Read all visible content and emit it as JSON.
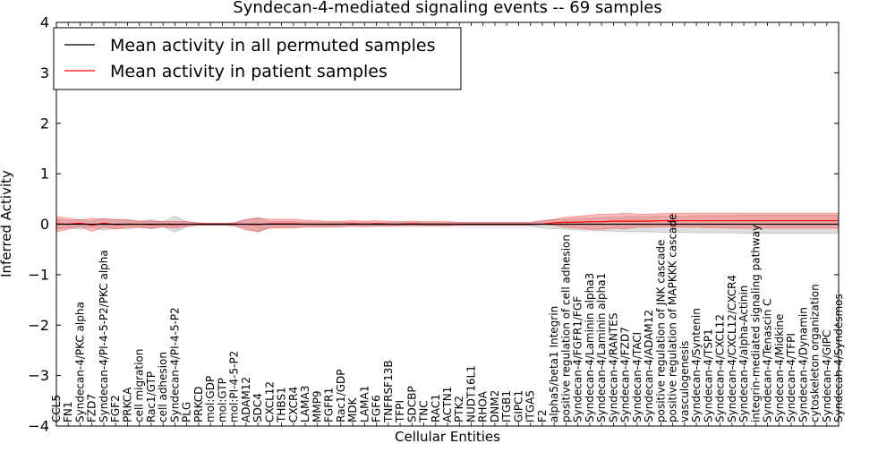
{
  "chart_data": {
    "type": "line",
    "title": "Syndecan-4-mediated signaling events -- 69 samples",
    "xlabel": "Cellular Entities",
    "ylabel": "Inferred Activity",
    "ylim": [
      -4,
      4
    ],
    "yticks": [
      -4,
      -3,
      -2,
      -1,
      0,
      1,
      2,
      3,
      4
    ],
    "ytick_labels": [
      "−4",
      "−3",
      "−2",
      "−1",
      "0",
      "1",
      "2",
      "3",
      "4"
    ],
    "legend_position": "top-left",
    "categories": [
      "CCL5",
      "FN1",
      "Syndecan-4/PKC alpha",
      "FZD7",
      "Syndecan-4/PI-4-5-P2/PKC alpha",
      "FGF2",
      "PRKCA",
      "cell migration",
      "Rac1/GTP",
      "cell adhesion",
      "Syndecan-4/PI-4-5-P2",
      "PLG",
      "PRKCD",
      "mol:GDP",
      "mol:GTP",
      "mol:PI-4-5-P2",
      "ADAM12",
      "SDC4",
      "CXCL12",
      "THBS1",
      "CXCR4",
      "LAMA3",
      "MMP9",
      "FGFR1",
      "Rac1/GDP",
      "MDK",
      "LAMA1",
      "FGF6",
      "TNFRSF13B",
      "TFPI",
      "SDCBP",
      "TNC",
      "RAC1",
      "ACTN1",
      "PTK2",
      "NUDT16L1",
      "RHOA",
      "DNM2",
      "ITGB1",
      "GIPC1",
      "ITGA5",
      "F2",
      "alpha5/beta1 Integrin",
      "positive regulation of cell adhesion",
      "Syndecan-4/FGFR1/FGF",
      "Syndecan-4/Laminin alpha3",
      "Syndecan-4/Laminin alpha1",
      "Syndecan-4/RANTES",
      "Syndecan-4/FZD7",
      "Syndecan-4/TACI",
      "Syndecan-4/ADAM12",
      "positive regulation of JNK cascade",
      "positive regulation of MAPKKK cascade",
      "vasculogenesis",
      "Syndecan-4/Syntenin",
      "Syndecan-4/TSP1",
      "Syndecan-4/CXCL12",
      "Syndecan-4/CXCL12/CXCR4",
      "Syndecan-4/alpha-Actinin",
      "integrin-mediated signaling pathway",
      "Syndecan-4/Tenascin C",
      "Syndecan-4/Midkine",
      "Syndecan-4/TFPI",
      "Syndecan-4/Dynamin",
      "cytoskeleton organization",
      "Syndecan-4/GIPC",
      "Syndecan-4/Syndesmos"
    ],
    "series": [
      {
        "name": "Mean activity in all permuted samples",
        "color": "#000000",
        "values": [
          0.0,
          0.0,
          0.0,
          0.0,
          0.0,
          0.0,
          0.0,
          0.0,
          0.0,
          0.0,
          0.0,
          0.0,
          0.0,
          0.0,
          0.0,
          0.0,
          0.0,
          0.0,
          0.0,
          0.0,
          0.0,
          0.0,
          0.0,
          0.0,
          0.0,
          0.0,
          0.0,
          0.0,
          0.0,
          0.0,
          0.0,
          0.0,
          0.0,
          0.0,
          0.0,
          0.0,
          0.0,
          0.0,
          0.0,
          0.0,
          0.0,
          0.0,
          0.0,
          0.0,
          0.0,
          0.0,
          0.0,
          0.0,
          0.0,
          0.0,
          0.0,
          0.0,
          0.0,
          0.0,
          0.0,
          0.0,
          0.0,
          0.0,
          0.0,
          0.0,
          0.0,
          0.0,
          0.0,
          0.0,
          0.0,
          0.0,
          0.0
        ],
        "band_lower": [
          -0.1,
          -0.07,
          -0.1,
          -0.06,
          -0.12,
          -0.08,
          -0.1,
          -0.06,
          -0.09,
          -0.05,
          -0.16,
          -0.05,
          -0.02,
          -0.02,
          -0.02,
          -0.02,
          -0.08,
          -0.16,
          -0.06,
          -0.06,
          -0.05,
          -0.04,
          -0.04,
          -0.04,
          -0.04,
          -0.03,
          -0.03,
          -0.03,
          -0.03,
          -0.03,
          -0.03,
          -0.03,
          -0.03,
          -0.03,
          -0.03,
          -0.03,
          -0.03,
          -0.03,
          -0.03,
          -0.03,
          -0.03,
          -0.08,
          -0.09,
          -0.1,
          -0.12,
          -0.12,
          -0.13,
          -0.14,
          -0.15,
          -0.15,
          -0.15,
          -0.16,
          -0.16,
          -0.16,
          -0.17,
          -0.17,
          -0.17,
          -0.17,
          -0.18,
          -0.18,
          -0.18,
          -0.18,
          -0.18,
          -0.18,
          -0.18,
          -0.18,
          -0.18
        ],
        "band_upper": [
          0.1,
          0.08,
          0.1,
          0.06,
          0.12,
          0.08,
          0.1,
          0.06,
          0.09,
          0.05,
          0.16,
          0.05,
          0.02,
          0.02,
          0.02,
          0.02,
          0.08,
          0.14,
          0.06,
          0.06,
          0.05,
          0.04,
          0.04,
          0.04,
          0.04,
          0.03,
          0.03,
          0.03,
          0.03,
          0.03,
          0.03,
          0.03,
          0.03,
          0.03,
          0.03,
          0.03,
          0.03,
          0.03,
          0.03,
          0.03,
          0.03,
          0.08,
          0.09,
          0.1,
          0.12,
          0.12,
          0.13,
          0.14,
          0.15,
          0.15,
          0.15,
          0.16,
          0.16,
          0.16,
          0.17,
          0.17,
          0.17,
          0.17,
          0.18,
          0.18,
          0.18,
          0.18,
          0.18,
          0.18,
          0.18,
          0.18,
          0.18
        ]
      },
      {
        "name": "Mean activity in patient samples",
        "color": "#ff0000",
        "values": [
          0.01,
          0.0,
          0.02,
          -0.02,
          0.02,
          -0.01,
          0.0,
          0.0,
          -0.01,
          0.0,
          -0.01,
          0.0,
          0.0,
          0.0,
          0.0,
          0.0,
          0.0,
          -0.01,
          0.01,
          0.01,
          0.01,
          0.0,
          0.0,
          0.0,
          0.0,
          0.01,
          0.0,
          0.01,
          0.0,
          0.0,
          0.01,
          0.0,
          0.0,
          0.0,
          0.0,
          0.0,
          0.0,
          0.0,
          0.0,
          0.0,
          0.0,
          0.0,
          0.03,
          0.04,
          0.04,
          0.05,
          0.05,
          0.06,
          0.06,
          0.06,
          0.06,
          0.07,
          0.07,
          0.07,
          0.07,
          0.07,
          0.07,
          0.07,
          0.07,
          0.07,
          0.07,
          0.07,
          0.07,
          0.07,
          0.07,
          0.07,
          0.07
        ],
        "band_lower": [
          -0.15,
          -0.1,
          -0.05,
          -0.14,
          -0.06,
          -0.1,
          -0.06,
          -0.06,
          -0.08,
          -0.05,
          -0.08,
          -0.04,
          -0.02,
          -0.02,
          -0.02,
          -0.03,
          -0.12,
          -0.14,
          -0.08,
          -0.08,
          -0.08,
          -0.06,
          -0.06,
          -0.06,
          -0.05,
          -0.04,
          -0.05,
          -0.04,
          -0.04,
          -0.03,
          -0.03,
          -0.03,
          -0.03,
          -0.03,
          -0.02,
          -0.02,
          -0.02,
          -0.02,
          -0.02,
          -0.02,
          -0.02,
          0.0,
          -0.02,
          -0.06,
          -0.08,
          -0.1,
          -0.1,
          -0.08,
          -0.09,
          -0.06,
          -0.06,
          -0.05,
          -0.05,
          -0.06,
          -0.06,
          -0.07,
          -0.07,
          -0.08,
          -0.08,
          -0.08,
          -0.08,
          -0.08,
          -0.08,
          -0.08,
          -0.08,
          -0.08,
          -0.08
        ],
        "band_upper": [
          0.15,
          0.12,
          0.08,
          0.12,
          0.1,
          0.1,
          0.08,
          0.06,
          0.06,
          0.05,
          0.06,
          0.05,
          0.03,
          0.02,
          0.02,
          0.03,
          0.1,
          0.12,
          0.1,
          0.1,
          0.1,
          0.08,
          0.07,
          0.06,
          0.06,
          0.07,
          0.06,
          0.07,
          0.06,
          0.05,
          0.06,
          0.05,
          0.05,
          0.05,
          0.04,
          0.04,
          0.04,
          0.04,
          0.04,
          0.04,
          0.04,
          0.06,
          0.1,
          0.14,
          0.16,
          0.18,
          0.2,
          0.2,
          0.22,
          0.2,
          0.2,
          0.21,
          0.22,
          0.22,
          0.22,
          0.22,
          0.22,
          0.22,
          0.22,
          0.22,
          0.22,
          0.22,
          0.22,
          0.22,
          0.22,
          0.22,
          0.22
        ]
      }
    ],
    "colors": {
      "permuted_band": "#c8c8c8",
      "patient_band": "#ff4040",
      "reference_line": "#3d8ec9"
    }
  }
}
